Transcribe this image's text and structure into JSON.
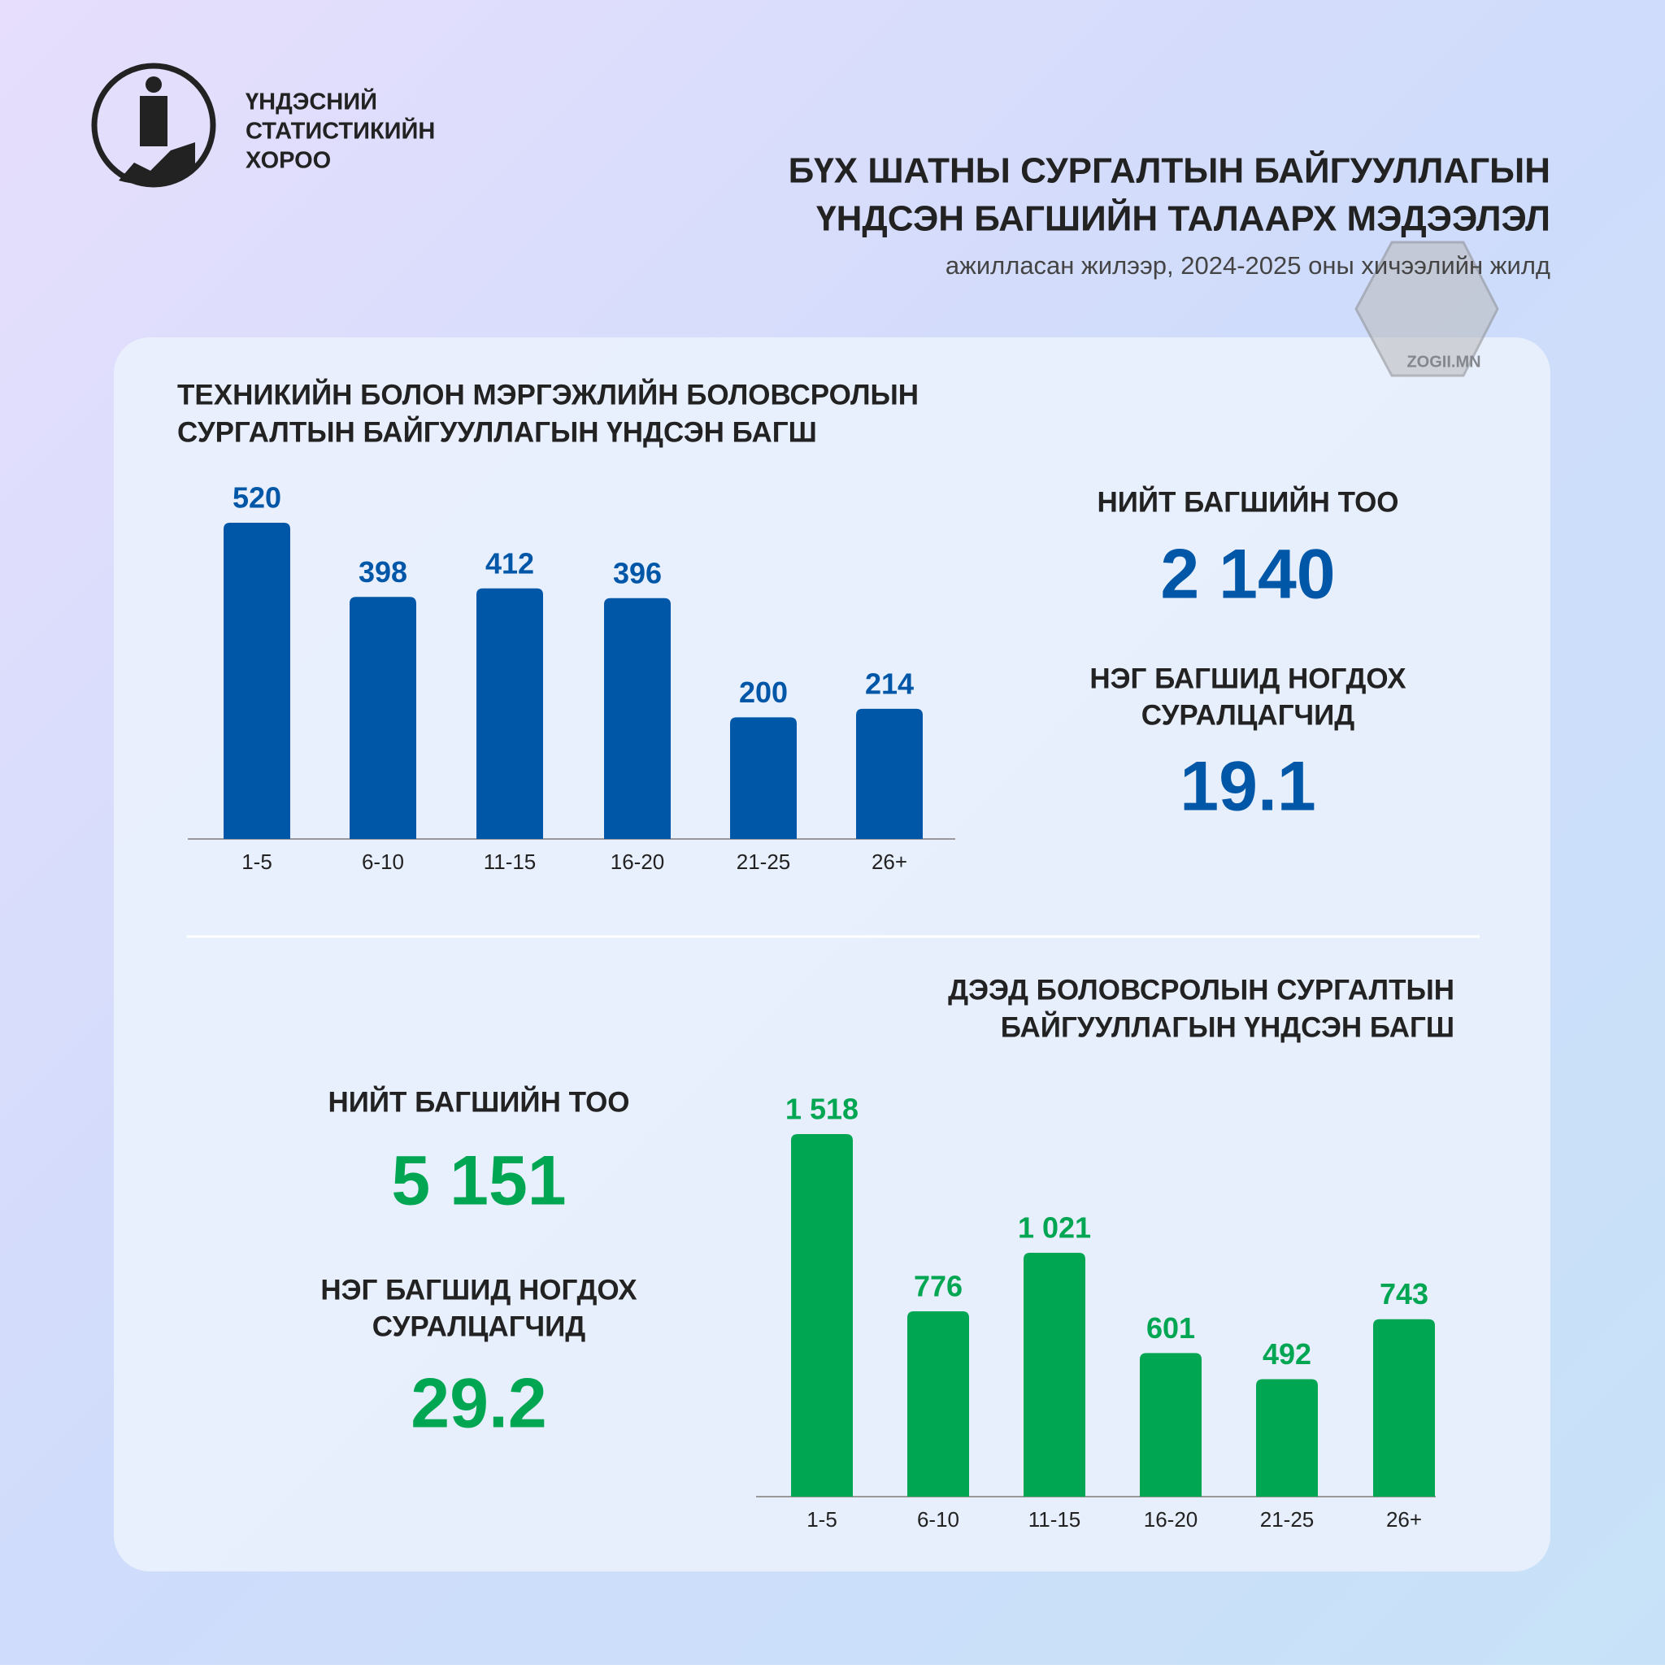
{
  "header": {
    "org": [
      "ҮНДЭСНИЙ",
      "СТАТИСТИКИЙН",
      "ХОРОО"
    ],
    "title": [
      "БҮХ ШАТНЫ СУРГАЛТЫН БАЙГУУЛЛАГЫН",
      "ҮНДСЭН БАГШИЙН ТАЛААРХ МЭДЭЭЛЭЛ"
    ],
    "subtitle": "ажилласан жилээр, 2024-2025 оны хичээлийн жилд",
    "watermark": "ZOGII.MN"
  },
  "chart_data": [
    {
      "type": "bar",
      "title": [
        "ТЕХНИКИЙН БОЛОН МЭРГЭЖЛИЙН БОЛОВСРОЛЫН",
        "СУРГАЛТЫН БАЙГУУЛЛАГЫН ҮНДСЭН БАГШ"
      ],
      "categories": [
        "1-5",
        "6-10",
        "11-15",
        "16-20",
        "21-25",
        "26+"
      ],
      "values": [
        520,
        398,
        412,
        396,
        200,
        214
      ],
      "color": "#0057a8",
      "stats": {
        "total_label": "НИЙТ БАГШИЙН ТОО",
        "total": "2 140",
        "ratio_label": [
          "НЭГ БАГШИД НОГДОХ",
          "СУРАЛЦАГЧИД"
        ],
        "ratio": "19.1"
      }
    },
    {
      "type": "bar",
      "title": [
        "ДЭЭД БОЛОВСРОЛЫН СУРГАЛТЫН",
        "БАЙГУУЛЛАГЫН ҮНДСЭН БАГШ"
      ],
      "categories": [
        "1-5",
        "6-10",
        "11-15",
        "16-20",
        "21-25",
        "26+"
      ],
      "values": [
        1518,
        776,
        1021,
        601,
        492,
        743
      ],
      "value_labels": [
        "1 518",
        "776",
        "1 021",
        "601",
        "492",
        "743"
      ],
      "color": "#00a651",
      "stats": {
        "total_label": "НИЙТ БАГШИЙН ТОО",
        "total": "5 151",
        "ratio_label": [
          "НЭГ БАГШИД НОГДОХ",
          "СУРАЛЦАГЧИД"
        ],
        "ratio": "29.2"
      }
    }
  ]
}
